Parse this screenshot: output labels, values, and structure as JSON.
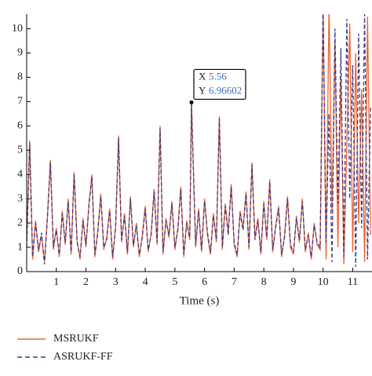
{
  "chart_data": {
    "type": "line",
    "xlabel": "Time (s)",
    "xlim": [
      0,
      11.65
    ],
    "ylim": [
      0,
      10.6
    ],
    "xticks": [
      1,
      2,
      3,
      4,
      5,
      6,
      7,
      8,
      9,
      10,
      11
    ],
    "yticks": [
      0,
      1,
      2,
      3,
      4,
      5,
      6,
      7,
      8,
      9,
      10
    ],
    "x": [
      0.0,
      0.1,
      0.2,
      0.3,
      0.4,
      0.5,
      0.6,
      0.7,
      0.8,
      0.9,
      1.0,
      1.1,
      1.2,
      1.3,
      1.4,
      1.5,
      1.6,
      1.7,
      1.8,
      1.9,
      2.0,
      2.1,
      2.2,
      2.3,
      2.4,
      2.5,
      2.6,
      2.7,
      2.8,
      2.9,
      3.0,
      3.1,
      3.2,
      3.3,
      3.4,
      3.5,
      3.6,
      3.7,
      3.8,
      3.9,
      4.0,
      4.1,
      4.2,
      4.3,
      4.4,
      4.5,
      4.6,
      4.7,
      4.8,
      4.9,
      5.0,
      5.1,
      5.2,
      5.3,
      5.4,
      5.5,
      5.56,
      5.7,
      5.8,
      5.9,
      6.0,
      6.1,
      6.2,
      6.3,
      6.4,
      6.5,
      6.6,
      6.7,
      6.8,
      6.9,
      7.0,
      7.1,
      7.2,
      7.3,
      7.4,
      7.5,
      7.6,
      7.7,
      7.8,
      7.9,
      8.0,
      8.1,
      8.2,
      8.3,
      8.4,
      8.5,
      8.6,
      8.7,
      8.8,
      8.9,
      9.0,
      9.1,
      9.2,
      9.3,
      9.4,
      9.5,
      9.6,
      9.7,
      9.8,
      9.9,
      10.0,
      10.1,
      10.2,
      10.3,
      10.4,
      10.5,
      10.6,
      10.7,
      10.8,
      10.9,
      11.0,
      11.1,
      11.2,
      11.3,
      11.4,
      11.5,
      11.6
    ],
    "series": [
      {
        "name": "MSRUKF",
        "color": "#f0642a",
        "dash": false,
        "values": [
          1.2,
          5.4,
          0.5,
          2.1,
          0.8,
          1.5,
          0.4,
          2.3,
          4.6,
          0.9,
          1.8,
          0.6,
          2.5,
          1.1,
          3.0,
          0.7,
          4.1,
          1.3,
          0.5,
          2.2,
          1.0,
          2.8,
          4.0,
          0.6,
          1.7,
          3.2,
          0.9,
          1.4,
          2.6,
          0.5,
          1.9,
          5.6,
          1.2,
          2.4,
          0.7,
          3.1,
          1.0,
          2.0,
          0.6,
          1.5,
          2.7,
          0.8,
          1.6,
          3.4,
          1.1,
          6.0,
          0.7,
          2.2,
          1.4,
          2.9,
          0.9,
          1.8,
          3.5,
          0.6,
          2.1,
          1.3,
          6.96602,
          1.0,
          2.6,
          0.8,
          3.0,
          1.5,
          0.7,
          2.4,
          1.2,
          6.4,
          0.9,
          2.8,
          1.6,
          3.6,
          1.1,
          0.6,
          2.5,
          1.8,
          3.3,
          0.9,
          4.5,
          1.4,
          2.2,
          0.7,
          2.9,
          1.3,
          3.8,
          0.8,
          1.9,
          2.7,
          0.6,
          1.5,
          3.1,
          1.0,
          0.7,
          2.3,
          1.2,
          3.0,
          0.8,
          1.6,
          0.5,
          2.0,
          1.1,
          0.9,
          10.8,
          0.5,
          11,
          2.5,
          9.5,
          1.0,
          8.0,
          0.3,
          5.2,
          10.2,
          0.8,
          9.0,
          2.0,
          7.5,
          0.4,
          10.5,
          1.5
        ]
      },
      {
        "name": "ASRUKF-FF",
        "color": "#3a3a8c",
        "dash": true,
        "values": [
          1.0,
          5.3,
          0.6,
          2.0,
          0.9,
          1.6,
          0.3,
          2.2,
          4.5,
          1.0,
          1.7,
          0.7,
          2.4,
          1.2,
          2.9,
          0.8,
          4.0,
          1.2,
          0.6,
          2.1,
          1.1,
          2.7,
          3.9,
          0.7,
          1.6,
          3.1,
          1.0,
          1.3,
          2.5,
          0.6,
          1.8,
          5.5,
          1.3,
          2.3,
          0.8,
          3.0,
          1.1,
          1.9,
          0.7,
          1.4,
          2.6,
          0.9,
          1.5,
          3.3,
          1.2,
          5.9,
          0.8,
          2.1,
          1.5,
          2.8,
          1.0,
          1.7,
          3.4,
          0.7,
          2.0,
          1.4,
          6.9,
          1.1,
          2.5,
          0.9,
          2.9,
          1.6,
          0.8,
          2.3,
          1.3,
          6.3,
          1.0,
          2.7,
          1.5,
          3.5,
          1.2,
          0.7,
          2.4,
          1.7,
          3.2,
          1.0,
          4.4,
          1.3,
          2.1,
          0.8,
          2.8,
          1.4,
          3.7,
          0.9,
          1.8,
          2.6,
          0.7,
          1.4,
          3.0,
          1.1,
          0.8,
          2.2,
          1.3,
          2.9,
          0.9,
          1.5,
          0.6,
          1.9,
          1.2,
          1.0,
          11,
          1.2,
          6.5,
          0.4,
          10.0,
          2.8,
          9.2,
          0.6,
          10.4,
          3.0,
          8.5,
          0.2,
          9.8,
          1.8,
          10.6,
          0.5,
          6.8
        ]
      }
    ],
    "annotation": {
      "x": 5.56,
      "y": 6.96602,
      "labels": [
        "X",
        "Y"
      ]
    }
  }
}
